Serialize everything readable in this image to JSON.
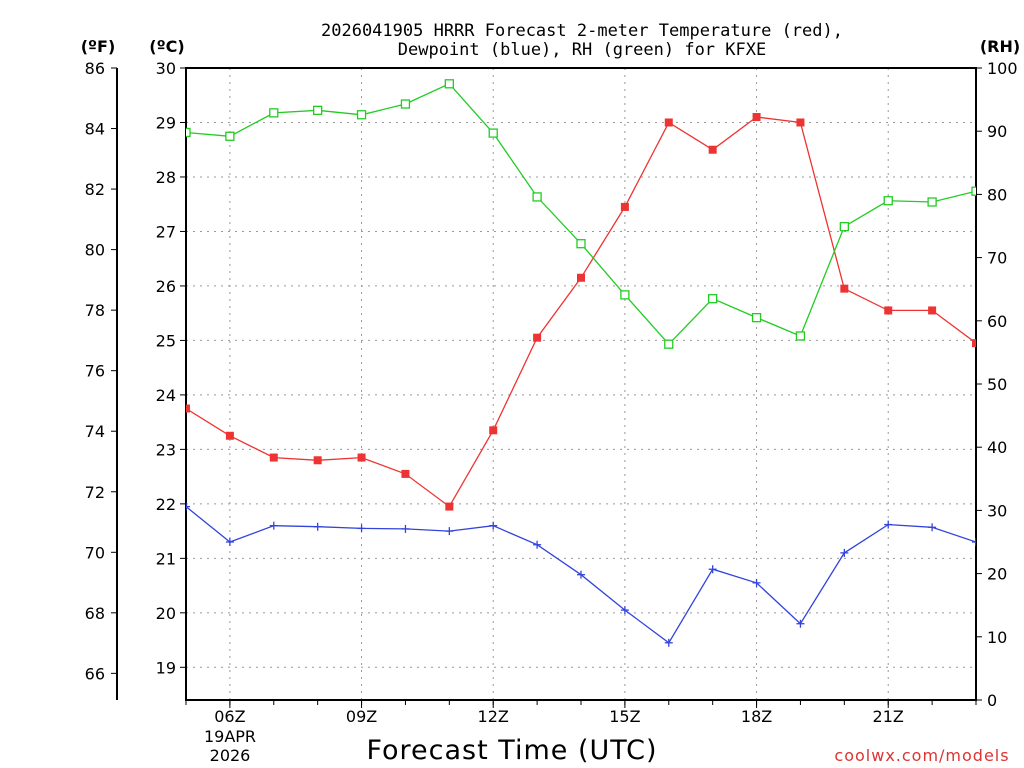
{
  "chart_data": {
    "type": "line",
    "title_line1": "2026041905 HRRR Forecast 2-meter Temperature (red),",
    "title_line2": "Dewpoint (blue), RH (green) for KFXE",
    "xlabel": "Forecast Time (UTC)",
    "credit": "coolwx.com/models",
    "units": {
      "fahrenheit": "(ºF)",
      "celsius": "(ºC)",
      "rh": "(RH)"
    },
    "x_hours": [
      5,
      6,
      7,
      8,
      9,
      10,
      11,
      12,
      13,
      14,
      15,
      16,
      17,
      18,
      19,
      20,
      21,
      22,
      23
    ],
    "xlim": [
      5,
      23
    ],
    "x_ticks": [
      {
        "hour": 6,
        "label": "06Z"
      },
      {
        "hour": 9,
        "label": "09Z"
      },
      {
        "hour": 12,
        "label": "12Z"
      },
      {
        "hour": 15,
        "label": "15Z"
      },
      {
        "hour": 18,
        "label": "18Z"
      },
      {
        "hour": 21,
        "label": "21Z"
      }
    ],
    "date_label": [
      "19APR",
      "2026"
    ],
    "celsius_axis": {
      "range": [
        18.4,
        30
      ],
      "ticks": [
        19,
        20,
        21,
        22,
        23,
        24,
        25,
        26,
        27,
        28,
        29,
        30
      ]
    },
    "fahrenheit_axis": {
      "range": [
        65.12,
        86
      ],
      "ticks": [
        66,
        68,
        70,
        72,
        74,
        76,
        78,
        80,
        82,
        84,
        86
      ]
    },
    "rh_axis": {
      "range": [
        0,
        100
      ],
      "ticks": [
        0,
        10,
        20,
        30,
        40,
        50,
        60,
        70,
        80,
        90,
        100
      ]
    },
    "grid": true,
    "series": [
      {
        "axis": "celsius",
        "color": "#ee3333",
        "marker": "filled-square",
        "values": [
          23.75,
          23.25,
          22.85,
          22.8,
          22.85,
          22.55,
          21.95,
          23.35,
          25.05,
          26.15,
          27.45,
          29.0,
          28.5,
          29.1,
          29.0,
          25.95,
          25.55,
          25.55,
          24.95
        ]
      },
      {
        "axis": "celsius",
        "color": "#3344dd",
        "marker": "plus",
        "values": [
          21.95,
          21.3,
          21.6,
          21.58,
          21.55,
          21.54,
          21.5,
          21.6,
          21.25,
          20.7,
          20.05,
          19.45,
          20.8,
          20.55,
          19.8,
          21.1,
          21.62,
          21.57,
          21.3
        ]
      },
      {
        "axis": "rh",
        "color": "#22cc22",
        "marker": "open-square",
        "values": [
          89.8,
          89.2,
          92.9,
          93.3,
          92.6,
          94.3,
          97.5,
          89.7,
          79.6,
          72.2,
          64.1,
          56.3,
          63.5,
          60.5,
          57.6,
          74.9,
          79.0,
          78.8,
          80.5
        ]
      }
    ]
  }
}
